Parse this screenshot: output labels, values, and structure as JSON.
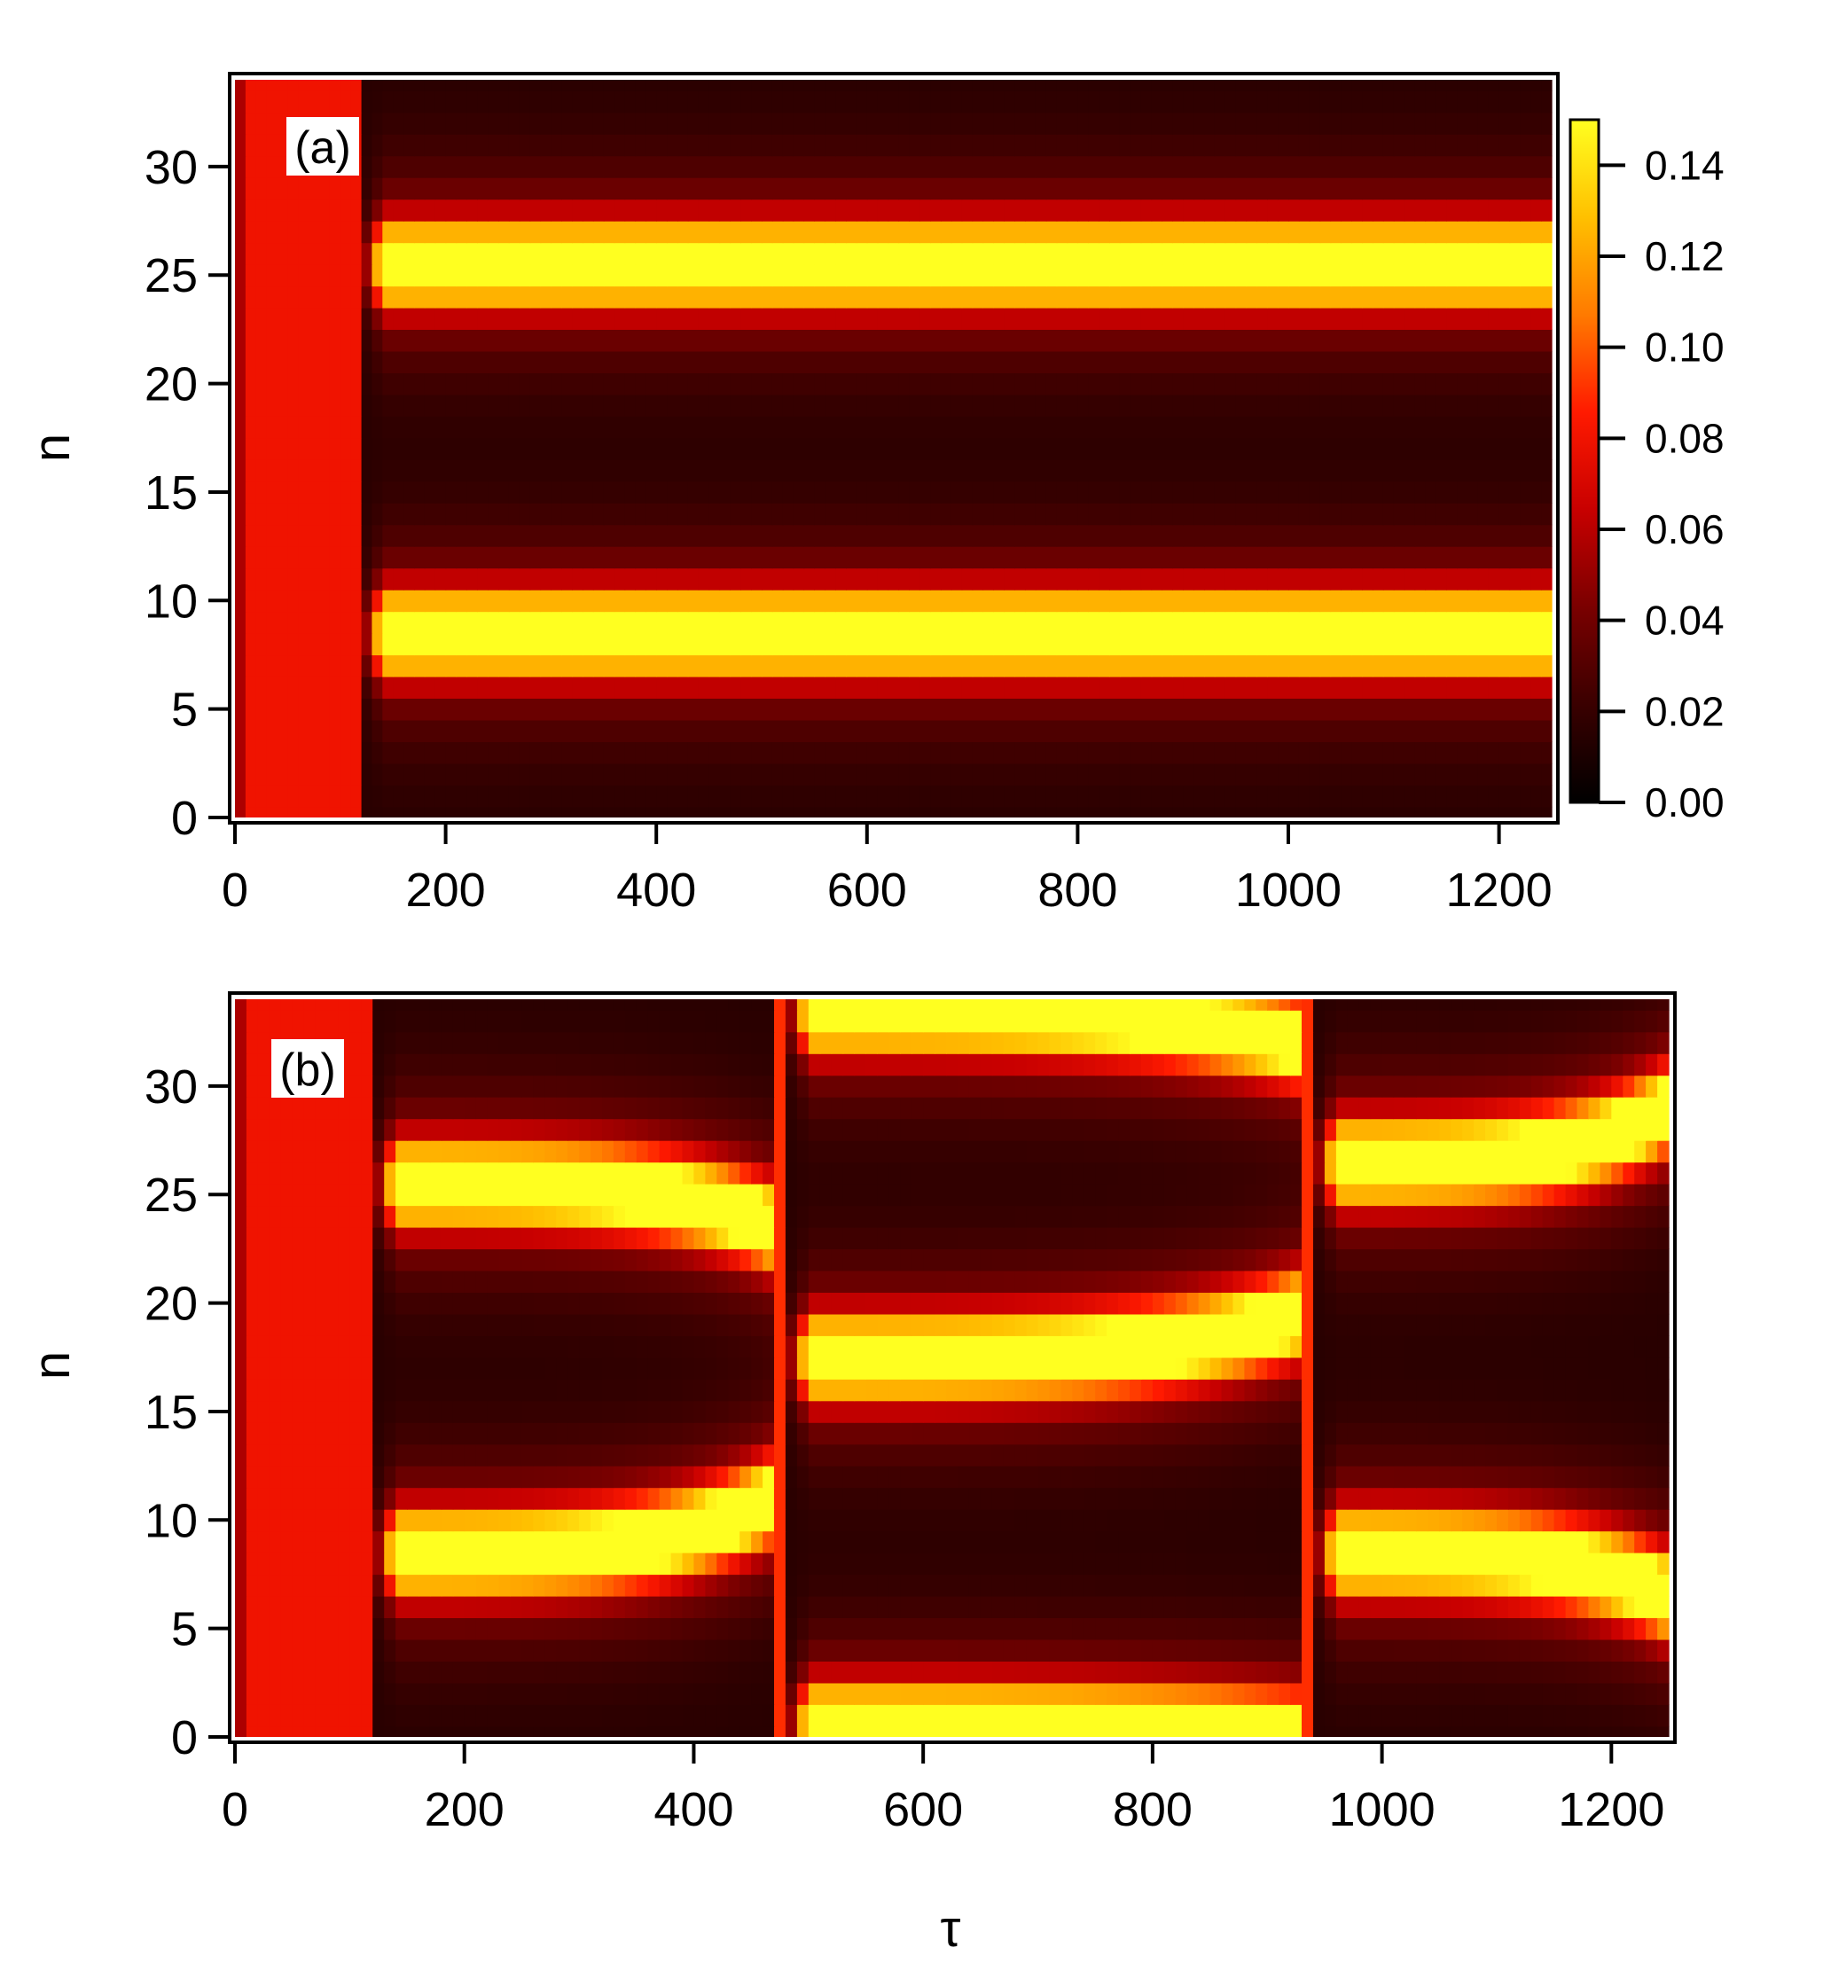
{
  "colors": {
    "colormap": [
      "#000000",
      "#3a0000",
      "#7a0000",
      "#c80000",
      "#ff1a00",
      "#ff7a00",
      "#ffc000",
      "#ffff20"
    ],
    "frame": "#000000",
    "inner_frame": "#ffffff",
    "background": "#ffffff"
  },
  "colorbar": {
    "ticks": [
      "0.00",
      "0.02",
      "0.04",
      "0.06",
      "0.08",
      "0.10",
      "0.12",
      "0.14"
    ],
    "range": [
      0,
      0.15
    ],
    "placement": "right of panel (a)"
  },
  "chart_data": [
    {
      "type": "heatmap",
      "panel_label": "(a)",
      "xlabel": "",
      "ylabel": "n",
      "xlim": [
        0,
        1250
      ],
      "ylim": [
        0,
        34
      ],
      "x_ticks": [
        0,
        200,
        400,
        600,
        800,
        1000,
        1200
      ],
      "y_ticks": [
        0,
        5,
        10,
        15,
        20,
        25,
        30
      ],
      "x_tick_labels": [
        "0",
        "200",
        "400",
        "600",
        "800",
        "1000",
        "1200"
      ],
      "y_tick_labels": [
        "0",
        "5",
        "10",
        "15",
        "20",
        "25",
        "30"
      ],
      "rows_n": 35,
      "uniform_phase_end_tau": 120,
      "uniform_value": 0.08,
      "background_value": 0.015,
      "segments": [
        {
          "tau_start": 120,
          "tau_end": 1250,
          "peaks_n": [
            8.5,
            25.5
          ]
        }
      ]
    },
    {
      "type": "heatmap",
      "panel_label": "(b)",
      "xlabel": "τ",
      "ylabel": "n",
      "xlim": [
        0,
        1250
      ],
      "ylim": [
        0,
        34
      ],
      "x_ticks": [
        0,
        200,
        400,
        600,
        800,
        1000,
        1200
      ],
      "y_ticks": [
        0,
        5,
        10,
        15,
        20,
        25,
        30
      ],
      "x_tick_labels": [
        "0",
        "200",
        "400",
        "600",
        "800",
        "1000",
        "1200"
      ],
      "y_tick_labels": [
        "0",
        "5",
        "10",
        "15",
        "20",
        "25",
        "30"
      ],
      "rows_n": 35,
      "uniform_phase_end_tau": 120,
      "uniform_value": 0.08,
      "background_value": 0.015,
      "segments": [
        {
          "tau_start": 120,
          "tau_end": 470,
          "peaks_n": [
            8.5,
            25.5
          ],
          "drift_n": [
            2.5,
            -2.0
          ]
        },
        {
          "tau_start": 480,
          "tau_end": 930,
          "peaks_n": [
            0.5,
            17.5,
            33.5
          ],
          "drift_n": [
            -0.5,
            2.0,
            -1.5
          ]
        },
        {
          "tau_start": 940,
          "tau_end": 1250,
          "peaks_n": [
            8.5,
            26.5
          ],
          "drift_n": [
            -2.0,
            2.5
          ]
        }
      ]
    }
  ]
}
